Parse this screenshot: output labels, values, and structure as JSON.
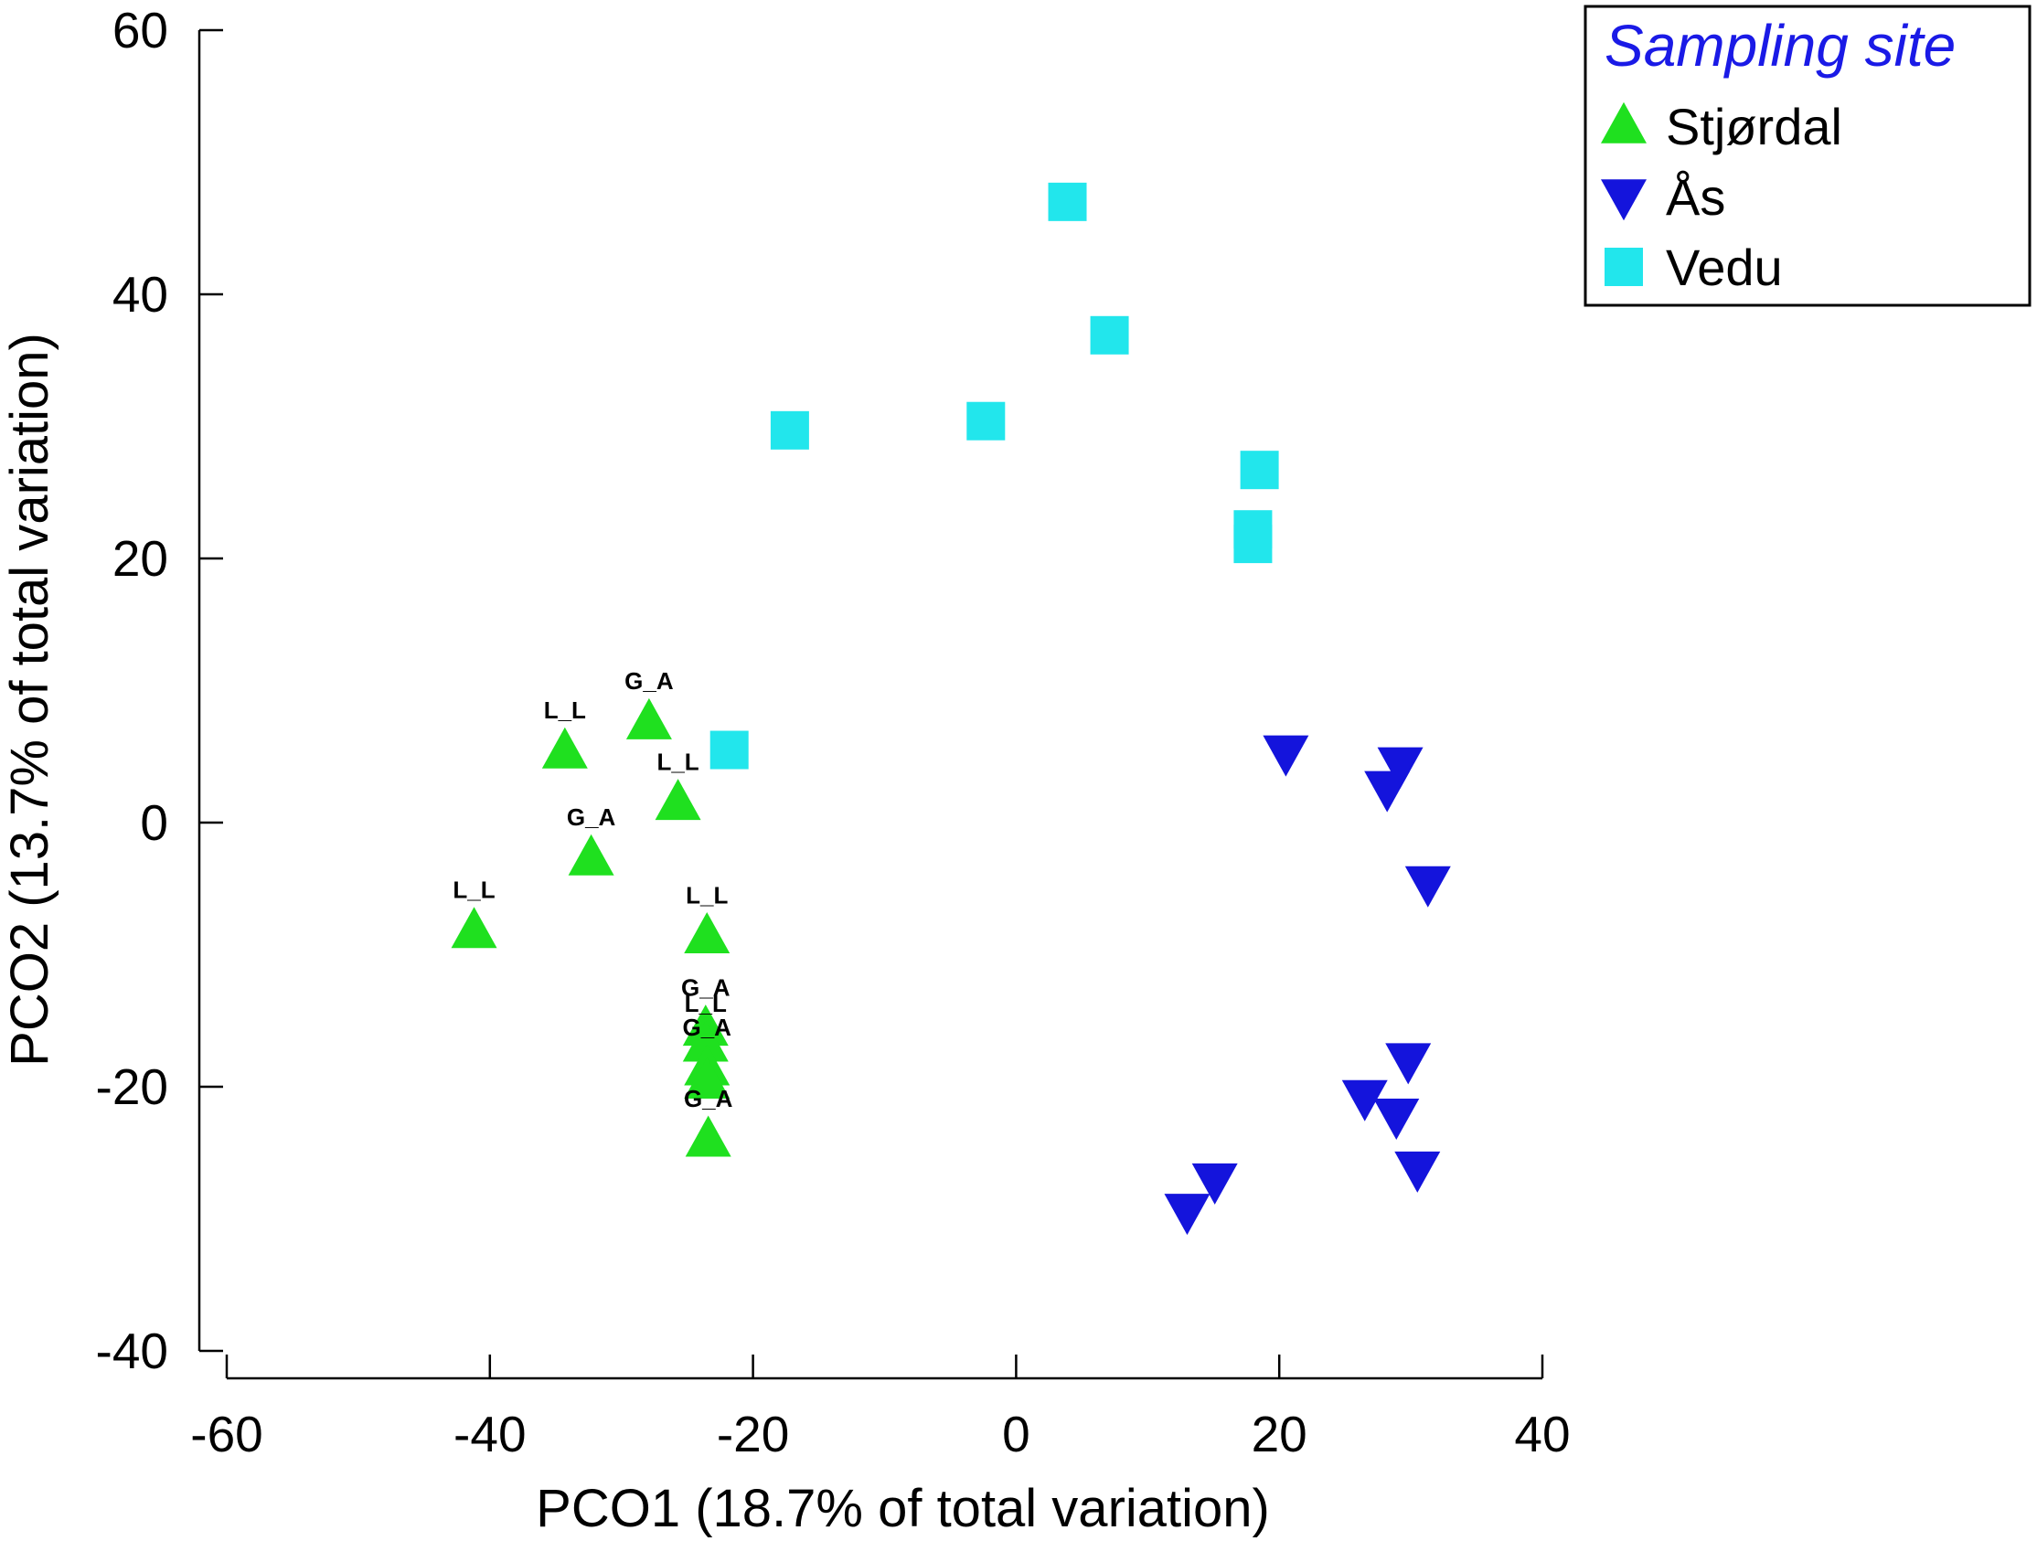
{
  "chart_data": {
    "type": "scatter",
    "title": "",
    "xlabel": "PCO1 (18.7% of total variation)",
    "ylabel": "PCO2 (13.7% of total variation)",
    "xlim": [
      -60,
      40
    ],
    "ylim": [
      -40,
      60
    ],
    "xticks": [
      -60,
      -40,
      -20,
      0,
      20,
      40
    ],
    "yticks": [
      -40,
      -20,
      0,
      20,
      40,
      60
    ],
    "legend": {
      "title": "Sampling site",
      "placement": "top-right",
      "title_color": "#1a1ae6"
    },
    "series": [
      {
        "name": "Stjørdal",
        "marker": "triangle-up",
        "color": "#1fe01f",
        "points": [
          {
            "x": -41.2,
            "y": -8.2,
            "label": "L_L"
          },
          {
            "x": -34.3,
            "y": 5.4,
            "label": "L_L"
          },
          {
            "x": -32.3,
            "y": -2.7,
            "label": "G_A"
          },
          {
            "x": -27.9,
            "y": 7.6,
            "label": "G_A"
          },
          {
            "x": -25.7,
            "y": 1.5,
            "label": "L_L"
          },
          {
            "x": -23.5,
            "y": -8.6,
            "label": "L_L"
          },
          {
            "x": -23.6,
            "y": -15.6,
            "label": "G_A"
          },
          {
            "x": -23.6,
            "y": -16.8,
            "label": "L_L"
          },
          {
            "x": -23.5,
            "y": -18.6,
            "label": "G_A"
          },
          {
            "x": -23.5,
            "y": -19.6,
            "label": ""
          },
          {
            "x": -23.4,
            "y": -24.0,
            "label": "G_A"
          }
        ]
      },
      {
        "name": "Ås",
        "marker": "triangle-down",
        "color": "#1414dc",
        "points": [
          {
            "x": 20.5,
            "y": 5.3
          },
          {
            "x": 29.2,
            "y": 4.4
          },
          {
            "x": 28.2,
            "y": 2.6
          },
          {
            "x": 31.3,
            "y": -4.6
          },
          {
            "x": 29.8,
            "y": -18.0
          },
          {
            "x": 26.5,
            "y": -20.8
          },
          {
            "x": 28.9,
            "y": -22.2
          },
          {
            "x": 30.5,
            "y": -26.2
          },
          {
            "x": 15.1,
            "y": -27.1
          },
          {
            "x": 13.0,
            "y": -29.4
          }
        ]
      },
      {
        "name": "Vedu",
        "marker": "square",
        "color": "#22e6ec",
        "points": [
          {
            "x": 3.9,
            "y": 47.0
          },
          {
            "x": 7.1,
            "y": 36.9
          },
          {
            "x": -2.3,
            "y": 30.4
          },
          {
            "x": -17.2,
            "y": 29.7
          },
          {
            "x": 18.5,
            "y": 26.7
          },
          {
            "x": 18.0,
            "y": 22.2
          },
          {
            "x": 18.0,
            "y": 21.1
          },
          {
            "x": -21.8,
            "y": 5.5
          }
        ]
      }
    ]
  }
}
